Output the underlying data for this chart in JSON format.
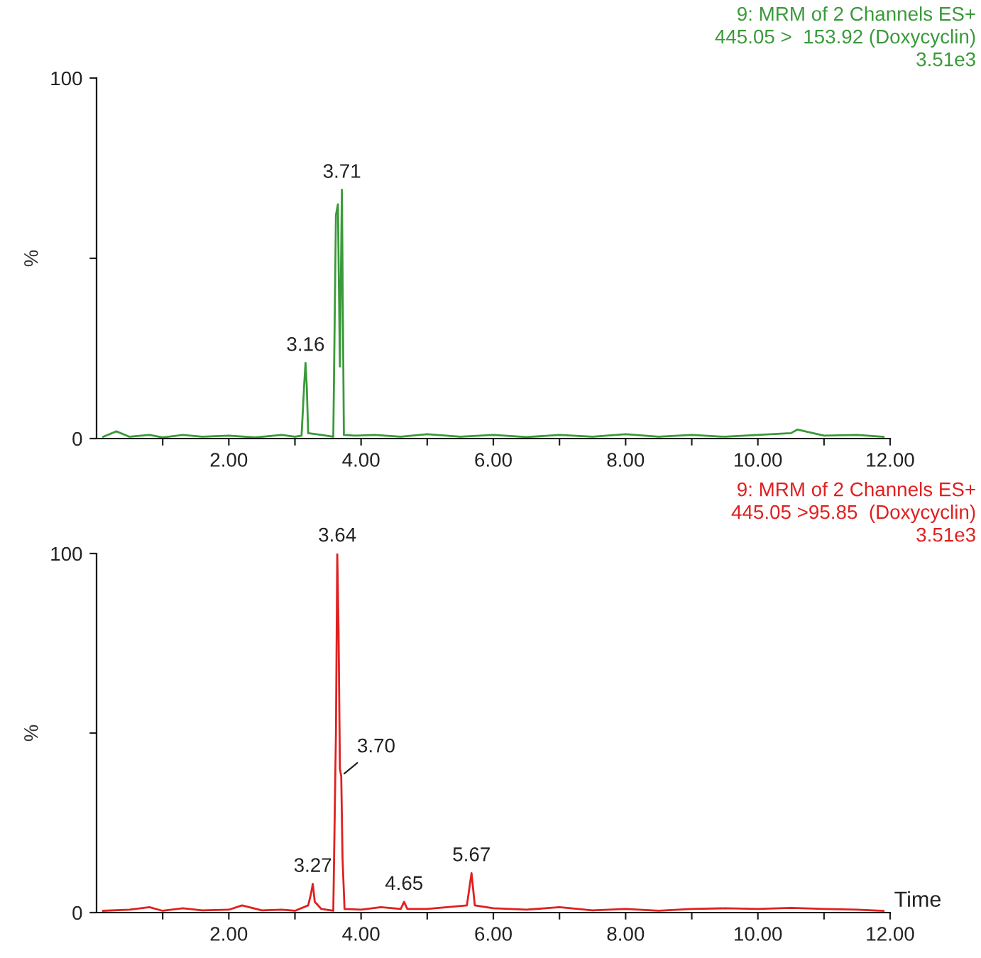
{
  "chart_data": [
    {
      "type": "line",
      "title": "9: MRM of 2 Channels ES+",
      "subtitle": "445.05 >  153.92 (Doxycyclin)",
      "ylabel": "%",
      "annotations": [
        "3.51e3",
        {
          "text": "3.71",
          "x": 3.71,
          "y": 69
        },
        {
          "text": "3.16",
          "x": 3.16,
          "y": 21
        }
      ],
      "xlim": [
        0,
        12
      ],
      "xticks": [
        {
          "value": 1,
          "label": null
        },
        {
          "value": 2,
          "label": "2.00"
        },
        {
          "value": 3,
          "label": null
        },
        {
          "value": 4,
          "label": "4.00"
        },
        {
          "value": 5,
          "label": null
        },
        {
          "value": 6,
          "label": "6.00"
        },
        {
          "value": 7,
          "label": null
        },
        {
          "value": 8,
          "label": "8.00"
        },
        {
          "value": 9,
          "label": null
        },
        {
          "value": 10,
          "label": "10.00"
        },
        {
          "value": 11,
          "label": null
        },
        {
          "value": 12,
          "label": "12.00"
        }
      ],
      "ylim": [
        0,
        100
      ],
      "yticks": [
        0,
        {
          "value": 50,
          "label": null
        },
        100
      ],
      "series": [
        {
          "color": "#3a9a3a",
          "x": [
            0.1,
            0.3,
            0.5,
            0.8,
            1.0,
            1.3,
            1.6,
            2.0,
            2.4,
            2.8,
            3.0,
            3.1,
            3.14,
            3.16,
            3.18,
            3.2,
            3.4,
            3.58,
            3.62,
            3.65,
            3.68,
            3.71,
            3.74,
            3.9,
            4.2,
            4.6,
            5.0,
            5.5,
            6.0,
            6.5,
            7.0,
            7.5,
            8.0,
            8.5,
            9.0,
            9.5,
            10.0,
            10.5,
            10.6,
            11.0,
            11.5,
            11.9
          ],
          "values": [
            0.5,
            2,
            0.5,
            1,
            0.3,
            1,
            0.5,
            0.8,
            0.3,
            1,
            0.5,
            0.8,
            15,
            21,
            14,
            1.5,
            1,
            0.5,
            62,
            65,
            20,
            69,
            1,
            0.8,
            1,
            0.5,
            1.2,
            0.5,
            1,
            0.4,
            1,
            0.5,
            1.2,
            0.5,
            1,
            0.5,
            1,
            1.5,
            2.5,
            0.8,
            1,
            0.5
          ]
        }
      ]
    },
    {
      "type": "line",
      "title": "9: MRM of 2 Channels ES+",
      "subtitle": "445.05 >95.85  (Doxycyclin)",
      "ylabel": "%",
      "xlabel": "Time",
      "annotations": [
        "3.51e3",
        {
          "text": "3.64",
          "x": 3.64,
          "y": 100
        },
        {
          "text": "3.70",
          "x": 3.7,
          "y": 38
        },
        {
          "text": "3.27",
          "x": 3.27,
          "y": 8
        },
        {
          "text": "4.65",
          "x": 4.65,
          "y": 3
        },
        {
          "text": "5.67",
          "x": 5.67,
          "y": 11
        }
      ],
      "xlim": [
        0,
        12
      ],
      "xticks": [
        {
          "value": 1,
          "label": null
        },
        {
          "value": 2,
          "label": "2.00"
        },
        {
          "value": 3,
          "label": null
        },
        {
          "value": 4,
          "label": "4.00"
        },
        {
          "value": 5,
          "label": null
        },
        {
          "value": 6,
          "label": "6.00"
        },
        {
          "value": 7,
          "label": null
        },
        {
          "value": 8,
          "label": "8.00"
        },
        {
          "value": 9,
          "label": null
        },
        {
          "value": 10,
          "label": "10.00"
        },
        {
          "value": 11,
          "label": null
        },
        {
          "value": 12,
          "label": "12.00"
        }
      ],
      "ylim": [
        0,
        100
      ],
      "yticks": [
        0,
        {
          "value": 50,
          "label": null
        },
        100
      ],
      "series": [
        {
          "color": "#e02020",
          "x": [
            0.1,
            0.5,
            0.8,
            1.0,
            1.3,
            1.6,
            2.0,
            2.2,
            2.5,
            2.8,
            3.0,
            3.2,
            3.24,
            3.27,
            3.3,
            3.4,
            3.58,
            3.62,
            3.64,
            3.66,
            3.68,
            3.7,
            3.72,
            3.75,
            4.0,
            4.3,
            4.6,
            4.65,
            4.7,
            5.0,
            5.3,
            5.6,
            5.67,
            5.72,
            6.0,
            6.5,
            7.0,
            7.5,
            8.0,
            8.5,
            9.0,
            9.5,
            10.0,
            10.5,
            11.0,
            11.5,
            11.9
          ],
          "values": [
            0.5,
            0.8,
            1.5,
            0.5,
            1.2,
            0.6,
            0.8,
            2,
            0.6,
            0.8,
            0.5,
            2,
            5,
            8,
            3,
            1,
            0.5,
            50,
            100,
            78,
            40,
            38,
            15,
            1,
            0.8,
            1.5,
            1,
            3,
            1,
            1,
            1.5,
            2,
            11,
            2,
            1.2,
            0.8,
            1.5,
            0.6,
            1,
            0.5,
            1,
            1.2,
            1,
            1.3,
            1,
            0.8,
            0.5
          ]
        }
      ]
    }
  ]
}
